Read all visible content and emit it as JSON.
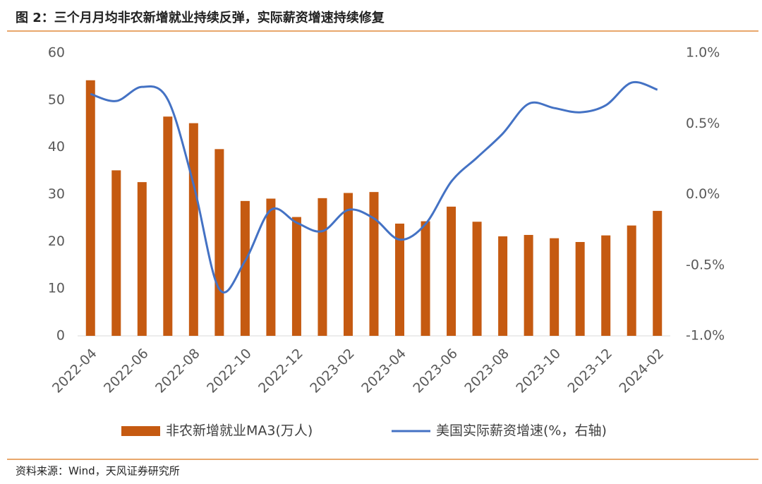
{
  "chart_data": {
    "type": "bar-line",
    "title": "图 2：三个月月均非农新增就业持续反弹，实际薪资增速持续修复",
    "source": "资料来源：Wind，天风证券研究所",
    "categories": [
      "2022-04",
      null,
      "2022-06",
      null,
      "2022-08",
      null,
      "2022-10",
      null,
      "2022-12",
      null,
      "2023-02",
      null,
      "2023-04",
      null,
      "2023-06",
      null,
      "2023-08",
      null,
      "2023-10",
      null,
      "2023-12",
      null,
      "2024-02"
    ],
    "series": [
      {
        "name": "非农新增就业MA3(万人)",
        "type": "bar",
        "color": "#c55a11",
        "values": [
          54.2,
          35.1,
          32.6,
          46.5,
          45.1,
          39.6,
          28.6,
          29.1,
          25.2,
          29.2,
          30.3,
          30.5,
          23.8,
          24.3,
          27.4,
          24.2,
          21.1,
          21.4,
          20.7,
          19.9,
          21.3,
          23.4,
          26.5
        ]
      },
      {
        "name": "美国实际薪资增速(%，右轴)",
        "type": "line",
        "axis": "y2",
        "color": "#4472c4",
        "values": [
          0.71,
          0.66,
          0.76,
          0.67,
          0.07,
          -0.67,
          -0.47,
          -0.11,
          -0.2,
          -0.26,
          -0.11,
          -0.17,
          -0.32,
          -0.21,
          0.09,
          0.26,
          0.43,
          0.64,
          0.61,
          0.58,
          0.63,
          0.79,
          0.74
        ]
      }
    ],
    "ylim": [
      0,
      60
    ],
    "yticks": [
      0,
      10,
      20,
      30,
      40,
      50,
      60
    ],
    "y2lim": [
      -1.0,
      1.0
    ],
    "y2ticks": [
      {
        "value": -1.0,
        "label": "-1.0%"
      },
      {
        "value": -0.5,
        "label": "-0.5%"
      },
      {
        "value": 0.0,
        "label": "0.0%"
      },
      {
        "value": 0.5,
        "label": "0.5%"
      },
      {
        "value": 1.0,
        "label": "1.0%"
      }
    ],
    "grid": false
  }
}
